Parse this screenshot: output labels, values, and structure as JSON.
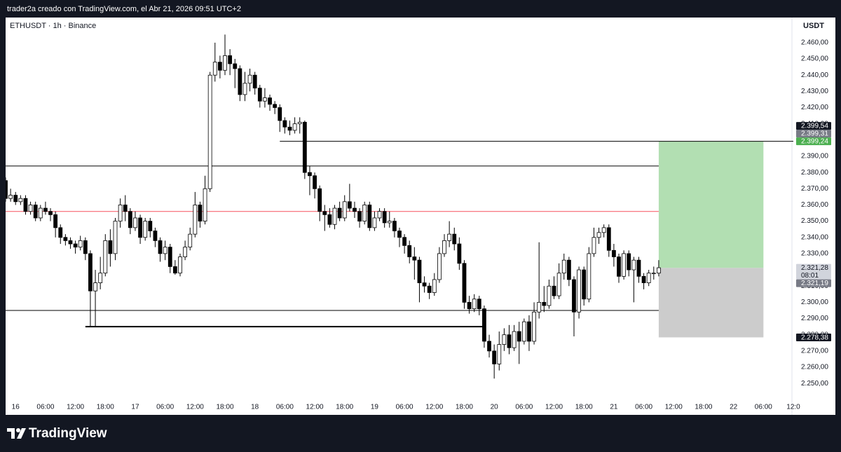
{
  "header": "trader2a creado con TradingView.com, el Abr 21, 2026 09:51 UTC+2",
  "brand": "TradingView",
  "chart_data": {
    "type": "candlestick",
    "title": "ETHUSDT · 1h · Binance",
    "currency": "USDT",
    "up_color": "#ffffff",
    "down_color": "#000000",
    "border_color": "#000000",
    "x": [
      "2026-04-15T22:00",
      "2026-04-15T23:00",
      "2026-04-16T00:00",
      "2026-04-16T01:00",
      "2026-04-16T02:00",
      "2026-04-16T03:00",
      "2026-04-16T04:00",
      "2026-04-16T05:00",
      "2026-04-16T06:00",
      "2026-04-16T07:00",
      "2026-04-16T08:00",
      "2026-04-16T09:00",
      "2026-04-16T10:00",
      "2026-04-16T11:00",
      "2026-04-16T12:00",
      "2026-04-16T13:00",
      "2026-04-16T14:00",
      "2026-04-16T15:00",
      "2026-04-16T16:00",
      "2026-04-16T17:00",
      "2026-04-16T18:00",
      "2026-04-16T19:00",
      "2026-04-16T20:00",
      "2026-04-16T21:00",
      "2026-04-16T22:00",
      "2026-04-16T23:00",
      "2026-04-17T00:00",
      "2026-04-17T01:00",
      "2026-04-17T02:00",
      "2026-04-17T03:00",
      "2026-04-17T04:00",
      "2026-04-17T05:00",
      "2026-04-17T06:00",
      "2026-04-17T07:00",
      "2026-04-17T08:00",
      "2026-04-17T09:00",
      "2026-04-17T10:00",
      "2026-04-17T11:00",
      "2026-04-17T12:00",
      "2026-04-17T13:00",
      "2026-04-17T14:00",
      "2026-04-17T15:00",
      "2026-04-17T16:00",
      "2026-04-17T17:00",
      "2026-04-17T18:00",
      "2026-04-17T19:00",
      "2026-04-17T20:00",
      "2026-04-17T21:00",
      "2026-04-17T22:00",
      "2026-04-17T23:00",
      "2026-04-18T00:00",
      "2026-04-18T01:00",
      "2026-04-18T02:00",
      "2026-04-18T03:00",
      "2026-04-18T04:00",
      "2026-04-18T05:00",
      "2026-04-18T06:00",
      "2026-04-18T07:00",
      "2026-04-18T08:00",
      "2026-04-18T09:00",
      "2026-04-18T10:00",
      "2026-04-18T11:00",
      "2026-04-18T12:00",
      "2026-04-18T13:00",
      "2026-04-18T14:00",
      "2026-04-18T15:00",
      "2026-04-18T16:00",
      "2026-04-18T17:00",
      "2026-04-18T18:00",
      "2026-04-18T19:00",
      "2026-04-18T20:00",
      "2026-04-18T21:00",
      "2026-04-18T22:00",
      "2026-04-18T23:00",
      "2026-04-19T00:00",
      "2026-04-19T01:00",
      "2026-04-19T02:00",
      "2026-04-19T03:00",
      "2026-04-19T04:00",
      "2026-04-19T05:00",
      "2026-04-19T06:00",
      "2026-04-19T07:00",
      "2026-04-19T08:00",
      "2026-04-19T09:00",
      "2026-04-19T10:00",
      "2026-04-19T11:00",
      "2026-04-19T12:00",
      "2026-04-19T13:00",
      "2026-04-19T14:00",
      "2026-04-19T15:00",
      "2026-04-19T16:00",
      "2026-04-19T17:00",
      "2026-04-19T18:00",
      "2026-04-19T19:00",
      "2026-04-19T20:00",
      "2026-04-19T21:00",
      "2026-04-19T22:00",
      "2026-04-19T23:00",
      "2026-04-20T00:00",
      "2026-04-20T01:00",
      "2026-04-20T02:00",
      "2026-04-20T03:00",
      "2026-04-20T04:00",
      "2026-04-20T05:00",
      "2026-04-20T06:00",
      "2026-04-20T07:00",
      "2026-04-20T08:00",
      "2026-04-20T09:00",
      "2026-04-20T10:00",
      "2026-04-20T11:00",
      "2026-04-20T12:00",
      "2026-04-20T13:00",
      "2026-04-20T14:00",
      "2026-04-20T15:00",
      "2026-04-20T16:00",
      "2026-04-20T17:00",
      "2026-04-20T18:00",
      "2026-04-20T19:00",
      "2026-04-20T20:00",
      "2026-04-20T21:00",
      "2026-04-20T22:00",
      "2026-04-20T23:00",
      "2026-04-21T00:00",
      "2026-04-21T01:00",
      "2026-04-21T02:00",
      "2026-04-21T03:00",
      "2026-04-21T04:00",
      "2026-04-21T05:00",
      "2026-04-21T06:00",
      "2026-04-21T07:00",
      "2026-04-21T08:00",
      "2026-04-21T09:00"
    ],
    "open": [
      2375,
      2364,
      2366,
      2362,
      2364,
      2356,
      2360,
      2352,
      2358,
      2356,
      2354,
      2346,
      2340,
      2338,
      2336,
      2334,
      2338,
      2330,
      2307,
      2312,
      2318,
      2338,
      2330,
      2350,
      2360,
      2356,
      2346,
      2352,
      2340,
      2350,
      2344,
      2338,
      2330,
      2334,
      2322,
      2318,
      2328,
      2334,
      2342,
      2360,
      2350,
      2370,
      2440,
      2448,
      2443,
      2452,
      2447,
      2444,
      2428,
      2435,
      2440,
      2432,
      2424,
      2426,
      2422,
      2420,
      2412,
      2408,
      2406,
      2410,
      2411,
      2380,
      2378,
      2370,
      2356,
      2354,
      2348,
      2358,
      2352,
      2362,
      2358,
      2356,
      2350,
      2360,
      2346,
      2352,
      2356,
      2349,
      2350,
      2344,
      2340,
      2335,
      2328,
      2326,
      2312,
      2310,
      2306,
      2314,
      2330,
      2338,
      2342,
      2336,
      2324,
      2300,
      2296,
      2302,
      2296,
      2276,
      2270,
      2262,
      2274,
      2280,
      2272,
      2282,
      2276,
      2288,
      2276,
      2294,
      2300,
      2298,
      2310,
      2304,
      2318,
      2326,
      2314,
      2294,
      2320,
      2302,
      2330,
      2340,
      2343,
      2346,
      2332,
      2328,
      2316,
      2330,
      2320,
      2326,
      2316,
      2312,
      2318,
      2318
    ],
    "high": [
      2377,
      2370,
      2368,
      2366,
      2366,
      2362,
      2362,
      2360,
      2362,
      2358,
      2356,
      2348,
      2342,
      2340,
      2338,
      2341,
      2340,
      2332,
      2320,
      2328,
      2342,
      2345,
      2352,
      2364,
      2366,
      2358,
      2356,
      2354,
      2352,
      2352,
      2346,
      2340,
      2338,
      2336,
      2326,
      2330,
      2338,
      2346,
      2368,
      2362,
      2378,
      2442,
      2460,
      2452,
      2465,
      2456,
      2450,
      2446,
      2442,
      2444,
      2442,
      2434,
      2432,
      2428,
      2424,
      2422,
      2414,
      2412,
      2414,
      2414,
      2412,
      2384,
      2380,
      2372,
      2360,
      2358,
      2360,
      2362,
      2366,
      2373,
      2362,
      2358,
      2362,
      2362,
      2356,
      2358,
      2358,
      2356,
      2352,
      2346,
      2342,
      2338,
      2334,
      2328,
      2316,
      2312,
      2318,
      2334,
      2342,
      2350,
      2346,
      2340,
      2326,
      2304,
      2305,
      2304,
      2298,
      2280,
      2274,
      2282,
      2284,
      2286,
      2286,
      2288,
      2290,
      2292,
      2300,
      2337,
      2310,
      2314,
      2316,
      2324,
      2330,
      2328,
      2316,
      2322,
      2322,
      2334,
      2346,
      2346,
      2348,
      2348,
      2336,
      2330,
      2332,
      2332,
      2328,
      2328,
      2318,
      2320,
      2322,
      2326
    ],
    "low": [
      2362,
      2362,
      2360,
      2360,
      2354,
      2354,
      2350,
      2350,
      2354,
      2350,
      2340,
      2336,
      2335,
      2333,
      2330,
      2332,
      2326,
      2285,
      2285,
      2308,
      2316,
      2322,
      2326,
      2346,
      2350,
      2342,
      2344,
      2336,
      2338,
      2340,
      2334,
      2325,
      2326,
      2318,
      2317,
      2316,
      2326,
      2332,
      2340,
      2346,
      2348,
      2368,
      2436,
      2438,
      2440,
      2440,
      2432,
      2424,
      2424,
      2430,
      2428,
      2420,
      2420,
      2418,
      2416,
      2405,
      2404,
      2403,
      2404,
      2404,
      2376,
      2366,
      2364,
      2350,
      2344,
      2346,
      2345,
      2350,
      2350,
      2356,
      2352,
      2346,
      2348,
      2344,
      2344,
      2350,
      2346,
      2346,
      2340,
      2334,
      2330,
      2324,
      2314,
      2300,
      2306,
      2302,
      2304,
      2312,
      2328,
      2334,
      2332,
      2320,
      2296,
      2293,
      2294,
      2292,
      2272,
      2266,
      2253,
      2258,
      2270,
      2268,
      2270,
      2262,
      2274,
      2270,
      2274,
      2290,
      2294,
      2296,
      2302,
      2302,
      2314,
      2310,
      2279,
      2290,
      2298,
      2300,
      2328,
      2336,
      2340,
      2328,
      2322,
      2312,
      2314,
      2316,
      2300,
      2312,
      2308,
      2310,
      2314,
      2316
    ],
    "close": [
      2364,
      2366,
      2362,
      2364,
      2356,
      2360,
      2352,
      2358,
      2356,
      2354,
      2346,
      2340,
      2338,
      2336,
      2334,
      2338,
      2330,
      2307,
      2312,
      2318,
      2338,
      2330,
      2350,
      2360,
      2356,
      2346,
      2352,
      2340,
      2350,
      2344,
      2338,
      2330,
      2334,
      2322,
      2318,
      2328,
      2334,
      2342,
      2360,
      2350,
      2370,
      2440,
      2448,
      2443,
      2452,
      2447,
      2444,
      2428,
      2435,
      2440,
      2432,
      2424,
      2426,
      2422,
      2420,
      2412,
      2408,
      2406,
      2410,
      2411,
      2380,
      2378,
      2370,
      2356,
      2354,
      2348,
      2358,
      2352,
      2362,
      2358,
      2356,
      2350,
      2360,
      2346,
      2352,
      2356,
      2349,
      2350,
      2344,
      2340,
      2335,
      2328,
      2326,
      2312,
      2310,
      2306,
      2314,
      2330,
      2338,
      2342,
      2336,
      2324,
      2300,
      2296,
      2302,
      2296,
      2276,
      2270,
      2262,
      2274,
      2280,
      2272,
      2282,
      2276,
      2288,
      2276,
      2294,
      2300,
      2298,
      2310,
      2304,
      2318,
      2326,
      2314,
      2294,
      2320,
      2302,
      2330,
      2340,
      2343,
      2346,
      2332,
      2328,
      2316,
      2330,
      2320,
      2326,
      2316,
      2312,
      2318,
      2318,
      2321.28
    ],
    "xlim": [
      "2026-04-15T22:00",
      "2026-04-22T12:00"
    ],
    "xticks": [
      {
        "value": "2026-04-16T00:00",
        "label": "16"
      },
      {
        "value": "2026-04-16T06:00",
        "label": "06:00"
      },
      {
        "value": "2026-04-16T12:00",
        "label": "12:00"
      },
      {
        "value": "2026-04-16T18:00",
        "label": "18:00"
      },
      {
        "value": "2026-04-17T00:00",
        "label": "17"
      },
      {
        "value": "2026-04-17T06:00",
        "label": "06:00"
      },
      {
        "value": "2026-04-17T12:00",
        "label": "12:00"
      },
      {
        "value": "2026-04-17T18:00",
        "label": "18:00"
      },
      {
        "value": "2026-04-18T00:00",
        "label": "18"
      },
      {
        "value": "2026-04-18T06:00",
        "label": "06:00"
      },
      {
        "value": "2026-04-18T12:00",
        "label": "12:00"
      },
      {
        "value": "2026-04-18T18:00",
        "label": "18:00"
      },
      {
        "value": "2026-04-19T00:00",
        "label": "19"
      },
      {
        "value": "2026-04-19T06:00",
        "label": "06:00"
      },
      {
        "value": "2026-04-19T12:00",
        "label": "12:00"
      },
      {
        "value": "2026-04-19T18:00",
        "label": "18:00"
      },
      {
        "value": "2026-04-20T00:00",
        "label": "20"
      },
      {
        "value": "2026-04-20T06:00",
        "label": "06:00"
      },
      {
        "value": "2026-04-20T12:00",
        "label": "12:00"
      },
      {
        "value": "2026-04-20T18:00",
        "label": "18:00"
      },
      {
        "value": "2026-04-21T00:00",
        "label": "21"
      },
      {
        "value": "2026-04-21T06:00",
        "label": "06:00"
      },
      {
        "value": "2026-04-21T12:00",
        "label": "12:00"
      },
      {
        "value": "2026-04-21T18:00",
        "label": "18:00"
      },
      {
        "value": "2026-04-22T00:00",
        "label": "22"
      },
      {
        "value": "2026-04-22T06:00",
        "label": "06:00"
      },
      {
        "value": "2026-04-22T12:00",
        "label": "12:0"
      }
    ],
    "ylim": [
      2241,
      2475.5
    ],
    "yticks": [
      {
        "value": 2250,
        "label": "2.250,00"
      },
      {
        "value": 2260,
        "label": "2.260,00"
      },
      {
        "value": 2270,
        "label": "2.270,00"
      },
      {
        "value": 2280,
        "label": "2.280,00"
      },
      {
        "value": 2290,
        "label": "2.290,00"
      },
      {
        "value": 2300,
        "label": "2.300,00"
      },
      {
        "value": 2310,
        "label": "2.310,00"
      },
      {
        "value": 2320,
        "label": "2.320,00"
      },
      {
        "value": 2330,
        "label": "2.330,00"
      },
      {
        "value": 2340,
        "label": "2.340,00"
      },
      {
        "value": 2350,
        "label": "2.350,00"
      },
      {
        "value": 2360,
        "label": "2.360,00"
      },
      {
        "value": 2370,
        "label": "2.370,00"
      },
      {
        "value": 2380,
        "label": "2.380,00"
      },
      {
        "value": 2390,
        "label": "2.390,00"
      },
      {
        "value": 2400,
        "label": "2.400,00"
      },
      {
        "value": 2410,
        "label": "2.410,00"
      },
      {
        "value": 2420,
        "label": "2.420,00"
      },
      {
        "value": 2430,
        "label": "2.430,00"
      },
      {
        "value": 2440,
        "label": "2.440,00"
      },
      {
        "value": 2450,
        "label": "2.450,00"
      },
      {
        "value": 2460,
        "label": "2.460,00"
      }
    ],
    "lines": [
      {
        "value": 2384,
        "from": "2026-04-15T22:00",
        "to": "2026-04-21T09:00",
        "color": "#000000",
        "width": 1
      },
      {
        "value": 2356,
        "from": "2026-04-15T22:00",
        "to": "2026-04-21T09:00",
        "color": "#f7525f",
        "width": 1
      },
      {
        "value": 2295,
        "from": "2026-04-15T22:00",
        "to": "2026-04-21T09:00",
        "color": "#000000",
        "width": 1
      },
      {
        "value": 2285,
        "from": "2026-04-16T14:00",
        "to": "2026-04-19T22:00",
        "color": "#000000",
        "width": 2
      },
      {
        "value": 2399.24,
        "from": "2026-04-18T05:00",
        "to": "2026-04-22T12:00",
        "color": "#000000",
        "width": 1
      }
    ],
    "position": {
      "entry": 2321.19,
      "target": 2399.24,
      "stop": 2278.38,
      "from": "2026-04-21T09:00",
      "to": "2026-04-22T06:00",
      "profit_color": "#b2dfb2",
      "loss_color": "#cccccc"
    },
    "price_labels": [
      {
        "value": 2399.24,
        "label": "2.399,24",
        "color": "#4caf50"
      },
      {
        "value": 2399.31,
        "label": "2.399,31",
        "color": "#787b86"
      },
      {
        "value": 2399.54,
        "label": "2.399,54",
        "color": "#131722"
      },
      {
        "value": 2321.28,
        "label": "2.321,28",
        "color": "#d1d4dc",
        "countdown": "08:01"
      },
      {
        "value": 2321.19,
        "label": "2.321,19",
        "color": "#787b86"
      },
      {
        "value": 2278.38,
        "label": "2.278,38",
        "color": "#131722"
      }
    ]
  }
}
